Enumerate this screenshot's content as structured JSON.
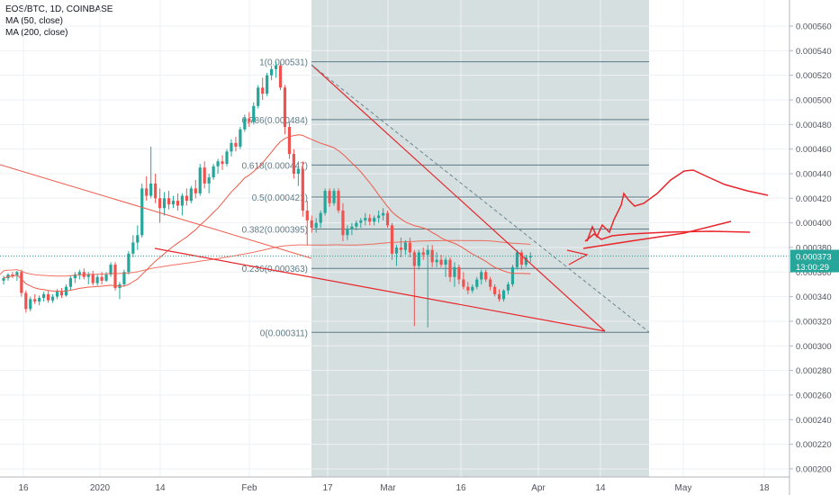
{
  "legend": {
    "symbol_line": "EOS/BTC, 1D, COINBASE",
    "ma50": "MA (50, close)",
    "ma200": "MA (200, close)"
  },
  "price_badges": {
    "last_price": "0.000373",
    "countdown": "13:00:29"
  },
  "colors": {
    "up": "#26a69a",
    "down": "#ef5350",
    "ma": "#f05a4a",
    "drawing": "#e8262b",
    "fib_box": "#b2c5c6",
    "fib_line": "#5d7a86",
    "grid": "#eef1f4"
  },
  "chart_data": {
    "type": "candlestick",
    "title": "EOS/BTC, 1D, COINBASE",
    "ylim": [
      0.00019,
      0.00057
    ],
    "y_ticks": [
      "0.000560",
      "0.000540",
      "0.000520",
      "0.000500",
      "0.000480",
      "0.000460",
      "0.000440",
      "0.000420",
      "0.000400",
      "0.000380",
      "0.000360",
      "0.000340",
      "0.000320",
      "0.000300",
      "0.000280",
      "0.000260",
      "0.000240",
      "0.000220",
      "0.000200"
    ],
    "x_ticks": [
      "16",
      "2020",
      "14",
      "Feb",
      "17",
      "Mar",
      "16",
      "Apr",
      "14",
      "May",
      "18"
    ],
    "fib_levels": [
      {
        "label": "1(0.000531)",
        "value": 0.000531
      },
      {
        "label": "0.786(0.000484)",
        "value": 0.000484
      },
      {
        "label": "0.618(0.000447)",
        "value": 0.000447
      },
      {
        "label": "0.5(0.000421)",
        "value": 0.000421
      },
      {
        "label": "0.382(0.000395)",
        "value": 0.000395
      },
      {
        "label": "0.236(0.000363)",
        "value": 0.000363
      },
      {
        "label": "0(0.000311)",
        "value": 0.000311
      }
    ],
    "candles": [
      [
        0.000353,
        0.000357,
        0.00035,
        0.000355
      ],
      [
        0.000355,
        0.000359,
        0.000353,
        0.000358
      ],
      [
        0.000358,
        0.00036,
        0.000355,
        0.000357
      ],
      [
        0.000357,
        0.000361,
        0.000353,
        0.00036
      ],
      [
        0.00036,
        0.000362,
        0.00034,
        0.000343
      ],
      [
        0.000343,
        0.000345,
        0.000327,
        0.00033
      ],
      [
        0.00033,
        0.00034,
        0.000328,
        0.000338
      ],
      [
        0.000338,
        0.000342,
        0.000334,
        0.000336
      ],
      [
        0.000336,
        0.000341,
        0.000333,
        0.000339
      ],
      [
        0.000339,
        0.000344,
        0.000336,
        0.000342
      ],
      [
        0.000342,
        0.000345,
        0.000335,
        0.000337
      ],
      [
        0.000337,
        0.000342,
        0.000335,
        0.00034
      ],
      [
        0.00034,
        0.000346,
        0.000338,
        0.000344
      ],
      [
        0.000344,
        0.000347,
        0.000339,
        0.000341
      ],
      [
        0.000341,
        0.00035,
        0.00034,
        0.000348
      ],
      [
        0.000348,
        0.000357,
        0.000345,
        0.000355
      ],
      [
        0.000355,
        0.00036,
        0.000351,
        0.000358
      ],
      [
        0.000358,
        0.000362,
        0.000354,
        0.00036
      ],
      [
        0.00036,
        0.000363,
        0.000354,
        0.000356
      ],
      [
        0.000356,
        0.00036,
        0.00035,
        0.000358
      ],
      [
        0.000358,
        0.000361,
        0.000349,
        0.000351
      ],
      [
        0.000351,
        0.000358,
        0.000349,
        0.000356
      ],
      [
        0.000356,
        0.00036,
        0.00035,
        0.000353
      ],
      [
        0.000353,
        0.00036,
        0.000352,
        0.000358
      ],
      [
        0.000358,
        0.000368,
        0.000356,
        0.000366
      ],
      [
        0.000366,
        0.000368,
        0.000345,
        0.000347
      ],
      [
        0.000347,
        0.000352,
        0.000338,
        0.00035
      ],
      [
        0.00035,
        0.000362,
        0.000348,
        0.00036
      ],
      [
        0.00036,
        0.000377,
        0.000358,
        0.000375
      ],
      [
        0.000375,
        0.00039,
        0.000372,
        0.000384
      ],
      [
        0.000384,
        0.000398,
        0.000378,
        0.00039
      ],
      [
        0.00039,
        0.000432,
        0.000388,
        0.000428
      ],
      [
        0.000428,
        0.000438,
        0.000418,
        0.000422
      ],
      [
        0.000422,
        0.000462,
        0.00042,
        0.000432
      ],
      [
        0.000432,
        0.00044,
        0.000416,
        0.00042
      ],
      [
        0.00042,
        0.000428,
        0.0004,
        0.000412
      ],
      [
        0.000412,
        0.000425,
        0.000406,
        0.00042
      ],
      [
        0.00042,
        0.000426,
        0.000411,
        0.000415
      ],
      [
        0.000415,
        0.000422,
        0.000412,
        0.000418
      ],
      [
        0.000418,
        0.000424,
        0.00041,
        0.000414
      ],
      [
        0.000414,
        0.000424,
        0.000406,
        0.000422
      ],
      [
        0.000422,
        0.000428,
        0.000414,
        0.000418
      ],
      [
        0.000418,
        0.00043,
        0.000416,
        0.000428
      ],
      [
        0.000428,
        0.000435,
        0.00042,
        0.000424
      ],
      [
        0.000424,
        0.000448,
        0.000422,
        0.000445
      ],
      [
        0.000445,
        0.00045,
        0.000428,
        0.000432
      ],
      [
        0.000432,
        0.00044,
        0.000424,
        0.000437
      ],
      [
        0.000437,
        0.000448,
        0.000435,
        0.000446
      ],
      [
        0.000446,
        0.000452,
        0.00044,
        0.00045
      ],
      [
        0.00045,
        0.000455,
        0.000443,
        0.000448
      ],
      [
        0.000448,
        0.00046,
        0.000446,
        0.000458
      ],
      [
        0.000458,
        0.000468,
        0.000454,
        0.000465
      ],
      [
        0.000465,
        0.00047,
        0.000458,
        0.000462
      ],
      [
        0.000462,
        0.000478,
        0.00046,
        0.000476
      ],
      [
        0.000476,
        0.000488,
        0.000474,
        0.000485
      ],
      [
        0.000485,
        0.00049,
        0.000478,
        0.000482
      ],
      [
        0.000482,
        0.000498,
        0.00048,
        0.000495
      ],
      [
        0.000495,
        0.000512,
        0.000493,
        0.00051
      ],
      [
        0.00051,
        0.000518,
        0.0005,
        0.000505
      ],
      [
        0.000505,
        0.000522,
        0.000503,
        0.00052
      ],
      [
        0.00052,
        0.000528,
        0.000516,
        0.000525
      ],
      [
        0.000525,
        0.000531,
        0.000518,
        0.000528
      ],
      [
        0.000528,
        0.000531,
        0.000508,
        0.00051
      ],
      [
        0.00051,
        0.000512,
        0.000472,
        0.000478
      ],
      [
        0.000478,
        0.000482,
        0.000452,
        0.000456
      ],
      [
        0.000456,
        0.00046,
        0.000436,
        0.00044
      ],
      [
        0.00044,
        0.00045,
        0.00043,
        0.000444
      ],
      [
        0.000444,
        0.00045,
        0.000405,
        0.00041
      ],
      [
        0.00041,
        0.000418,
        0.000382,
        0.000402
      ],
      [
        0.000402,
        0.000406,
        0.000392,
        0.000396
      ],
      [
        0.000396,
        0.000404,
        0.000392,
        0.0004
      ],
      [
        0.0004,
        0.00041,
        0.000396,
        0.000408
      ],
      [
        0.000408,
        0.000428,
        0.000406,
        0.000426
      ],
      [
        0.000426,
        0.000428,
        0.000413,
        0.000416
      ],
      [
        0.000416,
        0.000428,
        0.000414,
        0.000426
      ],
      [
        0.000426,
        0.000428,
        0.000408,
        0.00041
      ],
      [
        0.00041,
        0.000416,
        0.000385,
        0.00039
      ],
      [
        0.00039,
        0.000398,
        0.000386,
        0.000395
      ],
      [
        0.000395,
        0.0004,
        0.00039,
        0.000397
      ],
      [
        0.000397,
        0.000402,
        0.000394,
        0.0004
      ],
      [
        0.0004,
        0.000404,
        0.000396,
        0.000402
      ],
      [
        0.000402,
        0.000408,
        0.000398,
        0.000404
      ],
      [
        0.000404,
        0.000407,
        0.000398,
        0.000401
      ],
      [
        0.000401,
        0.000406,
        0.000398,
        0.000404
      ],
      [
        0.000404,
        0.00041,
        0.0004,
        0.000406
      ],
      [
        0.000406,
        0.000412,
        0.000402,
        0.000408
      ],
      [
        0.000408,
        0.00041,
        0.000396,
        0.000398
      ],
      [
        0.000398,
        0.0004,
        0.00037,
        0.000375
      ],
      [
        0.000375,
        0.000382,
        0.000365,
        0.00038
      ],
      [
        0.00038,
        0.000388,
        0.000372,
        0.000378
      ],
      [
        0.000378,
        0.000386,
        0.000374,
        0.000384
      ],
      [
        0.000384,
        0.000388,
        0.000372,
        0.000376
      ],
      [
        0.000376,
        0.000378,
        0.000316,
        0.000365
      ],
      [
        0.000365,
        0.000378,
        0.000362,
        0.000376
      ],
      [
        0.000376,
        0.00038,
        0.00037,
        0.000374
      ],
      [
        0.000374,
        0.000382,
        0.000315,
        0.000378
      ],
      [
        0.000378,
        0.000382,
        0.000364,
        0.000368
      ],
      [
        0.000368,
        0.000376,
        0.000364,
        0.00037
      ],
      [
        0.00037,
        0.000374,
        0.000364,
        0.000366
      ],
      [
        0.000366,
        0.000372,
        0.000356,
        0.00037
      ],
      [
        0.00037,
        0.000372,
        0.000352,
        0.000356
      ],
      [
        0.000356,
        0.000368,
        0.000348,
        0.000364
      ],
      [
        0.000364,
        0.000366,
        0.00035,
        0.000354
      ],
      [
        0.000354,
        0.00036,
        0.000346,
        0.000348
      ],
      [
        0.000348,
        0.000352,
        0.000342,
        0.000345
      ],
      [
        0.000345,
        0.00035,
        0.000343,
        0.000348
      ],
      [
        0.000348,
        0.000356,
        0.000346,
        0.000354
      ],
      [
        0.000354,
        0.000362,
        0.00035,
        0.00036
      ],
      [
        0.00036,
        0.000362,
        0.000352,
        0.000354
      ],
      [
        0.000354,
        0.000356,
        0.000345,
        0.000348
      ],
      [
        0.000348,
        0.00035,
        0.00034,
        0.000342
      ],
      [
        0.000342,
        0.000346,
        0.000336,
        0.000338
      ],
      [
        0.000338,
        0.000346,
        0.000336,
        0.000345
      ],
      [
        0.000345,
        0.000352,
        0.000342,
        0.00035
      ],
      [
        0.00035,
        0.000366,
        0.000348,
        0.000364
      ],
      [
        0.000364,
        0.000378,
        0.000362,
        0.000376
      ],
      [
        0.000376,
        0.000378,
        0.000362,
        0.000366
      ],
      [
        0.000366,
        0.000374,
        0.000364,
        0.000372
      ],
      [
        0.000372,
        0.000376,
        0.000368,
        0.000373
      ]
    ]
  }
}
